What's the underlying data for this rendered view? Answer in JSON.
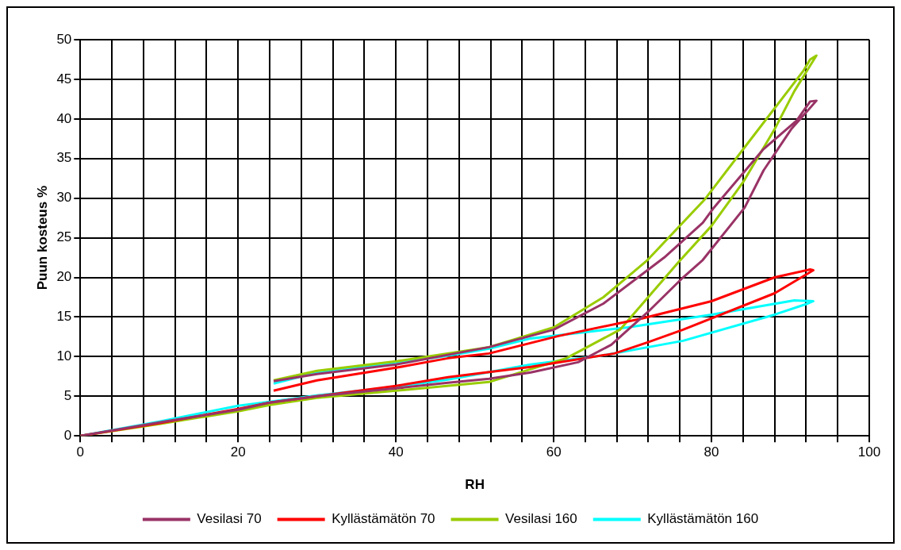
{
  "chart_data": {
    "type": "line",
    "xlabel": "RH",
    "ylabel": "Puun kosteus %",
    "xlim": [
      0,
      100
    ],
    "ylim": [
      0,
      50
    ],
    "xticks": [
      0,
      {
        "value": 4,
        "label": null
      },
      {
        "value": 8,
        "label": null
      },
      {
        "value": 12,
        "label": null
      },
      {
        "value": 16,
        "label": null
      },
      20,
      {
        "value": 24,
        "label": null
      },
      {
        "value": 28,
        "label": null
      },
      {
        "value": 32,
        "label": null
      },
      {
        "value": 36,
        "label": null
      },
      40,
      {
        "value": 44,
        "label": null
      },
      {
        "value": 48,
        "label": null
      },
      {
        "value": 52,
        "label": null
      },
      {
        "value": 56,
        "label": null
      },
      60,
      {
        "value": 64,
        "label": null
      },
      {
        "value": 68,
        "label": null
      },
      {
        "value": 72,
        "label": null
      },
      {
        "value": 76,
        "label": null
      },
      80,
      {
        "value": 84,
        "label": null
      },
      {
        "value": 88,
        "label": null
      },
      {
        "value": 92,
        "label": null
      },
      {
        "value": 96,
        "label": null
      },
      100
    ],
    "yticks": [
      0,
      5,
      10,
      15,
      20,
      25,
      30,
      35,
      40,
      45,
      50
    ],
    "grid": true,
    "legend": "bottom",
    "marker": "none",
    "line_style": "solid",
    "series": [
      {
        "name": "Vesilasi 70",
        "color": "#993366",
        "x": [
          0,
          10,
          20,
          24,
          30,
          40,
          46.6,
          51.8,
          57.1,
          63.1,
          67.3,
          71.9,
          76.4,
          78.9,
          84.2,
          86.6,
          90.1,
          93.3,
          92.5,
          90.8,
          86.6,
          80.3,
          78.9,
          74,
          66.3,
          60,
          51.8,
          40,
          30,
          24.5
        ],
        "values": [
          0,
          1.7,
          3.3,
          4.2,
          5,
          6,
          6.7,
          7.2,
          8,
          9.3,
          11.5,
          15.6,
          20,
          22.2,
          28.8,
          33.5,
          38.7,
          42.3,
          42.2,
          39.8,
          36.2,
          28.8,
          26.9,
          22.5,
          16.7,
          13.4,
          11.2,
          9,
          7.8,
          6.9
        ]
      },
      {
        "name": "Kyllästämätön 70",
        "color": "#ff0000",
        "x": [
          0,
          10,
          20,
          24,
          30,
          40,
          46.6,
          57.1,
          67.7,
          71.9,
          76.4,
          88,
          91.9,
          92.9,
          92.5,
          88,
          80,
          71.1,
          60.6,
          51.8,
          46.6,
          40,
          30,
          24.5
        ],
        "values": [
          0,
          1.6,
          3.4,
          4.2,
          5,
          6.3,
          7.4,
          8.7,
          10.4,
          11.8,
          13.4,
          18,
          20.3,
          20.9,
          21,
          20,
          17,
          14.8,
          12.6,
          10.4,
          9.8,
          8.6,
          7,
          5.7
        ]
      },
      {
        "name": "Vesilasi 160",
        "color": "#99cc00",
        "x": [
          0,
          10,
          20,
          24,
          30,
          40,
          51.8,
          61.6,
          68.4,
          75.8,
          80,
          84,
          88,
          90.5,
          93.3,
          92.5,
          91.6,
          84.5,
          79.2,
          71.9,
          66.3,
          60,
          51.8,
          40,
          30,
          24.5
        ],
        "values": [
          0,
          1.5,
          3.1,
          3.9,
          4.8,
          5.7,
          6.8,
          9.8,
          13.4,
          21.9,
          26.5,
          32,
          38.7,
          43.5,
          48,
          47.5,
          46,
          36.8,
          29.9,
          22.2,
          17.5,
          13.7,
          11.2,
          9.4,
          8.2,
          7
        ]
      },
      {
        "name": "Kyllästämätön 160",
        "color": "#00ffff",
        "x": [
          0,
          10,
          20,
          24,
          30,
          40,
          46.6,
          57.1,
          65.9,
          76.4,
          88,
          92.2,
          92.9,
          90.5,
          80,
          69.4,
          57.1,
          51.8,
          46.6,
          40,
          30,
          24.5
        ],
        "values": [
          0,
          1.8,
          3.8,
          4.3,
          5.1,
          6.2,
          7.1,
          9,
          10.1,
          12,
          15.3,
          16.7,
          17,
          17.1,
          15.3,
          13.7,
          12.3,
          11,
          10.1,
          9.2,
          8,
          6.6
        ]
      }
    ]
  }
}
